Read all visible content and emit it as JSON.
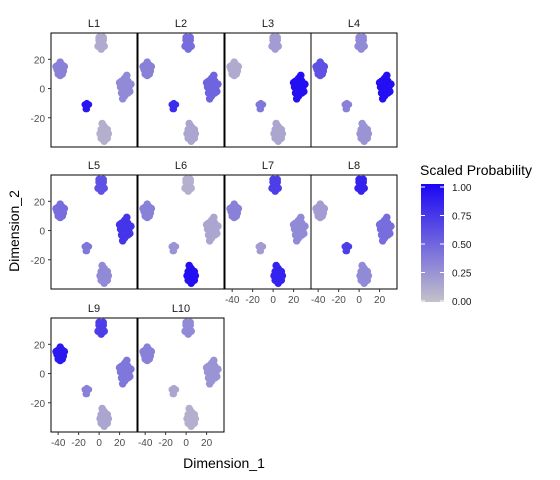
{
  "chart_data": {
    "type": "scatter",
    "title": "",
    "xlabel": "Dimension_1",
    "ylabel": "Dimension_2",
    "xlim": [
      -47,
      37
    ],
    "ylim": [
      -40,
      38
    ],
    "x_ticks": [
      -40,
      -20,
      0,
      20
    ],
    "x_tick_labels": [
      "-40",
      "-20",
      "0",
      "20"
    ],
    "y_ticks": [
      20,
      0,
      -20
    ],
    "y_tick_labels": [
      "20",
      "0",
      "-20"
    ],
    "grid": false,
    "legend": {
      "title": "Scaled Probability",
      "placement": "right",
      "ticks": [
        1.0,
        0.75,
        0.5,
        0.25,
        0.0
      ],
      "tick_labels": [
        "1.00",
        "0.75",
        "0.50",
        "0.25",
        "0.00"
      ],
      "low_color": "#c4c2c9",
      "high_color": "#1a06f4"
    },
    "clusters": [
      {
        "id": "upper-left",
        "x": -38,
        "y": 13
      },
      {
        "id": "top",
        "x": 2,
        "y": 30
      },
      {
        "id": "right",
        "x": 25,
        "y": 1
      },
      {
        "id": "small-left",
        "x": -12,
        "y": -12
      },
      {
        "id": "bottom",
        "x": 5,
        "y": -31
      }
    ],
    "panels": [
      {
        "label": "L1",
        "values": {
          "upper-left": 0.35,
          "top": 0.12,
          "right": 0.3,
          "small-left": 0.92,
          "bottom": 0.1
        }
      },
      {
        "label": "L2",
        "values": {
          "upper-left": 0.35,
          "top": 0.45,
          "right": 0.5,
          "small-left": 0.8,
          "bottom": 0.15
        }
      },
      {
        "label": "L3",
        "values": {
          "upper-left": 0.12,
          "top": 0.2,
          "right": 0.95,
          "small-left": 0.4,
          "bottom": 0.15
        }
      },
      {
        "label": "L4",
        "values": {
          "upper-left": 0.6,
          "top": 0.3,
          "right": 0.95,
          "small-left": 0.35,
          "bottom": 0.25
        }
      },
      {
        "label": "L5",
        "values": {
          "upper-left": 0.45,
          "top": 0.6,
          "right": 0.75,
          "small-left": 0.4,
          "bottom": 0.3
        }
      },
      {
        "label": "L6",
        "values": {
          "upper-left": 0.35,
          "top": 0.1,
          "right": 0.15,
          "small-left": 0.25,
          "bottom": 0.95
        }
      },
      {
        "label": "L7",
        "values": {
          "upper-left": 0.35,
          "top": 0.7,
          "right": 0.3,
          "small-left": 0.2,
          "bottom": 0.85
        }
      },
      {
        "label": "L8",
        "values": {
          "upper-left": 0.2,
          "top": 0.85,
          "right": 0.45,
          "small-left": 0.7,
          "bottom": 0.3
        }
      },
      {
        "label": "L9",
        "values": {
          "upper-left": 0.9,
          "top": 0.7,
          "right": 0.4,
          "small-left": 0.35,
          "bottom": 0.15
        }
      },
      {
        "label": "L10",
        "values": {
          "upper-left": 0.35,
          "top": 0.3,
          "right": 0.25,
          "small-left": 0.15,
          "bottom": 0.1
        }
      }
    ]
  }
}
